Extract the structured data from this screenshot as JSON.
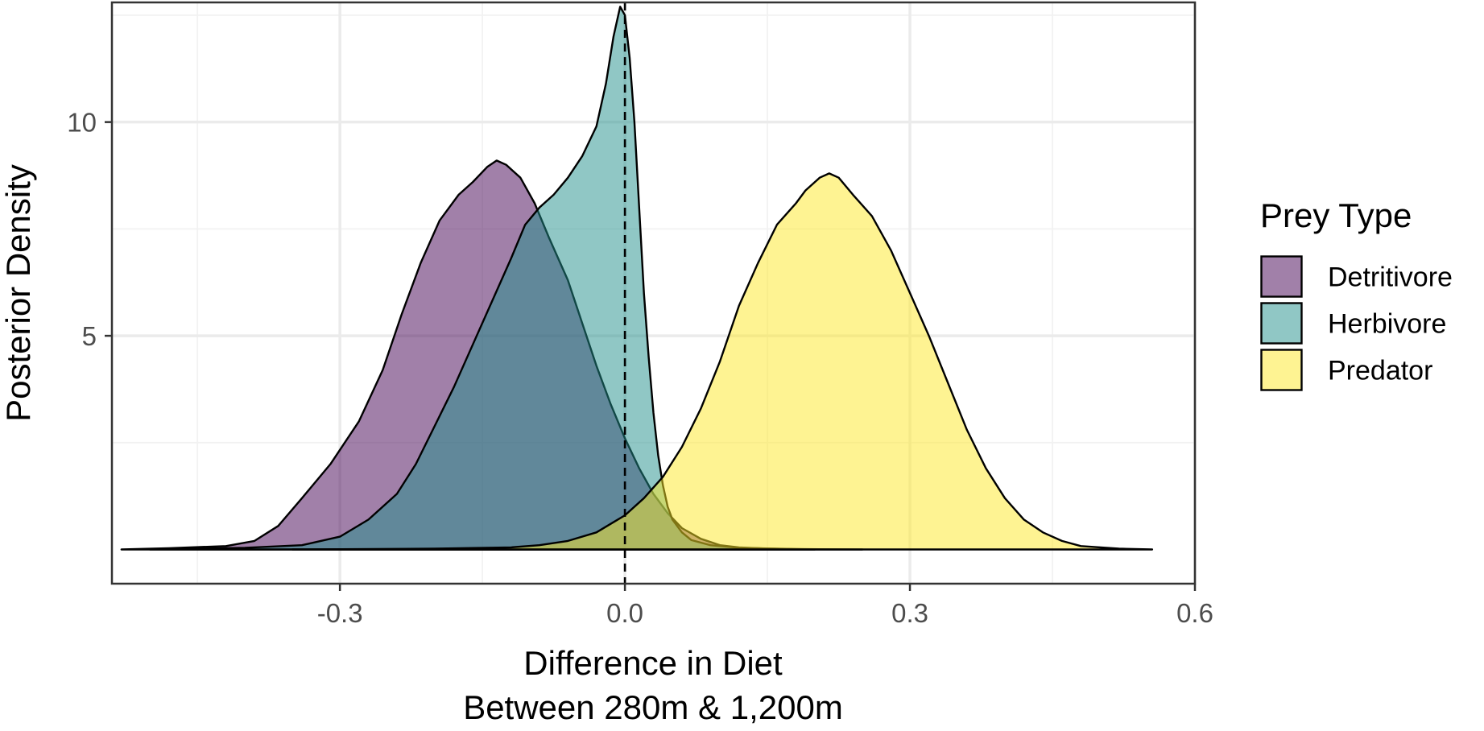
{
  "chart_data": {
    "type": "area",
    "subtype": "density",
    "title": "",
    "xlabel_lines": [
      "Difference in Diet",
      "Between 280m & 1,200m"
    ],
    "ylabel": "Posterior Density",
    "xlim": [
      -0.54,
      0.6
    ],
    "ylim": [
      -0.8,
      12.8
    ],
    "x_ticks": [
      -0.3,
      0.0,
      0.3,
      0.6
    ],
    "x_tick_labels": [
      "-0.3",
      "0.0",
      "0.3",
      "0.6"
    ],
    "y_ticks": [
      5,
      10
    ],
    "y_tick_labels": [
      "5",
      "10"
    ],
    "grid": true,
    "reference_line": {
      "x": 0.0,
      "style": "dashed",
      "color": "#000000"
    },
    "fill_alpha": 0.5,
    "legend": {
      "title": "Prey Type",
      "position": "right",
      "entries": [
        {
          "label": "Detritivore",
          "color": "#440154"
        },
        {
          "label": "Herbivore",
          "color": "#21908C"
        },
        {
          "label": "Predator",
          "color": "#FDE725"
        }
      ]
    },
    "series": [
      {
        "name": "Detritivore",
        "color": "#440154",
        "points": [
          [
            -0.53,
            0
          ],
          [
            -0.48,
            0.03
          ],
          [
            -0.42,
            0.08
          ],
          [
            -0.39,
            0.2
          ],
          [
            -0.365,
            0.55
          ],
          [
            -0.34,
            1.2
          ],
          [
            -0.31,
            2.0
          ],
          [
            -0.28,
            3.0
          ],
          [
            -0.255,
            4.2
          ],
          [
            -0.235,
            5.5
          ],
          [
            -0.215,
            6.7
          ],
          [
            -0.195,
            7.7
          ],
          [
            -0.175,
            8.3
          ],
          [
            -0.16,
            8.6
          ],
          [
            -0.145,
            8.95
          ],
          [
            -0.135,
            9.1
          ],
          [
            -0.125,
            9.0
          ],
          [
            -0.11,
            8.7
          ],
          [
            -0.095,
            8.1
          ],
          [
            -0.08,
            7.3
          ],
          [
            -0.06,
            6.3
          ],
          [
            -0.045,
            5.3
          ],
          [
            -0.03,
            4.3
          ],
          [
            -0.015,
            3.4
          ],
          [
            0.0,
            2.6
          ],
          [
            0.015,
            1.9
          ],
          [
            0.03,
            1.3
          ],
          [
            0.045,
            0.85
          ],
          [
            0.06,
            0.5
          ],
          [
            0.08,
            0.25
          ],
          [
            0.1,
            0.1
          ],
          [
            0.12,
            0.05
          ],
          [
            0.15,
            0.02
          ],
          [
            0.2,
            0
          ]
        ]
      },
      {
        "name": "Herbivore",
        "color": "#21908C",
        "points": [
          [
            -0.5,
            0
          ],
          [
            -0.4,
            0.04
          ],
          [
            -0.34,
            0.1
          ],
          [
            -0.3,
            0.3
          ],
          [
            -0.27,
            0.7
          ],
          [
            -0.24,
            1.3
          ],
          [
            -0.22,
            2.0
          ],
          [
            -0.2,
            2.9
          ],
          [
            -0.18,
            3.8
          ],
          [
            -0.16,
            4.8
          ],
          [
            -0.14,
            5.8
          ],
          [
            -0.12,
            6.8
          ],
          [
            -0.105,
            7.6
          ],
          [
            -0.09,
            8.0
          ],
          [
            -0.075,
            8.3
          ],
          [
            -0.06,
            8.7
          ],
          [
            -0.045,
            9.2
          ],
          [
            -0.03,
            9.9
          ],
          [
            -0.02,
            10.9
          ],
          [
            -0.012,
            12.0
          ],
          [
            -0.005,
            12.7
          ],
          [
            0.0,
            12.5
          ],
          [
            0.005,
            11.5
          ],
          [
            0.01,
            10.0
          ],
          [
            0.015,
            8.0
          ],
          [
            0.02,
            6.0
          ],
          [
            0.025,
            4.5
          ],
          [
            0.03,
            3.2
          ],
          [
            0.035,
            2.2
          ],
          [
            0.04,
            1.5
          ],
          [
            0.045,
            1.0
          ],
          [
            0.05,
            0.7
          ],
          [
            0.06,
            0.4
          ],
          [
            0.07,
            0.22
          ],
          [
            0.09,
            0.1
          ],
          [
            0.12,
            0.04
          ],
          [
            0.18,
            0.01
          ],
          [
            0.25,
            0
          ]
        ]
      },
      {
        "name": "Predator",
        "color": "#FDE725",
        "points": [
          [
            -0.35,
            0
          ],
          [
            -0.2,
            0.02
          ],
          [
            -0.12,
            0.05
          ],
          [
            -0.09,
            0.1
          ],
          [
            -0.06,
            0.2
          ],
          [
            -0.03,
            0.4
          ],
          [
            0.0,
            0.8
          ],
          [
            0.02,
            1.2
          ],
          [
            0.04,
            1.7
          ],
          [
            0.06,
            2.4
          ],
          [
            0.08,
            3.3
          ],
          [
            0.1,
            4.4
          ],
          [
            0.12,
            5.7
          ],
          [
            0.14,
            6.7
          ],
          [
            0.16,
            7.6
          ],
          [
            0.18,
            8.1
          ],
          [
            0.19,
            8.4
          ],
          [
            0.205,
            8.7
          ],
          [
            0.215,
            8.8
          ],
          [
            0.225,
            8.7
          ],
          [
            0.24,
            8.3
          ],
          [
            0.26,
            7.8
          ],
          [
            0.28,
            7.0
          ],
          [
            0.3,
            6.0
          ],
          [
            0.32,
            5.0
          ],
          [
            0.34,
            3.9
          ],
          [
            0.36,
            2.8
          ],
          [
            0.38,
            1.9
          ],
          [
            0.4,
            1.2
          ],
          [
            0.42,
            0.7
          ],
          [
            0.44,
            0.4
          ],
          [
            0.46,
            0.2
          ],
          [
            0.48,
            0.08
          ],
          [
            0.52,
            0.02
          ],
          [
            0.555,
            0
          ]
        ]
      }
    ]
  }
}
